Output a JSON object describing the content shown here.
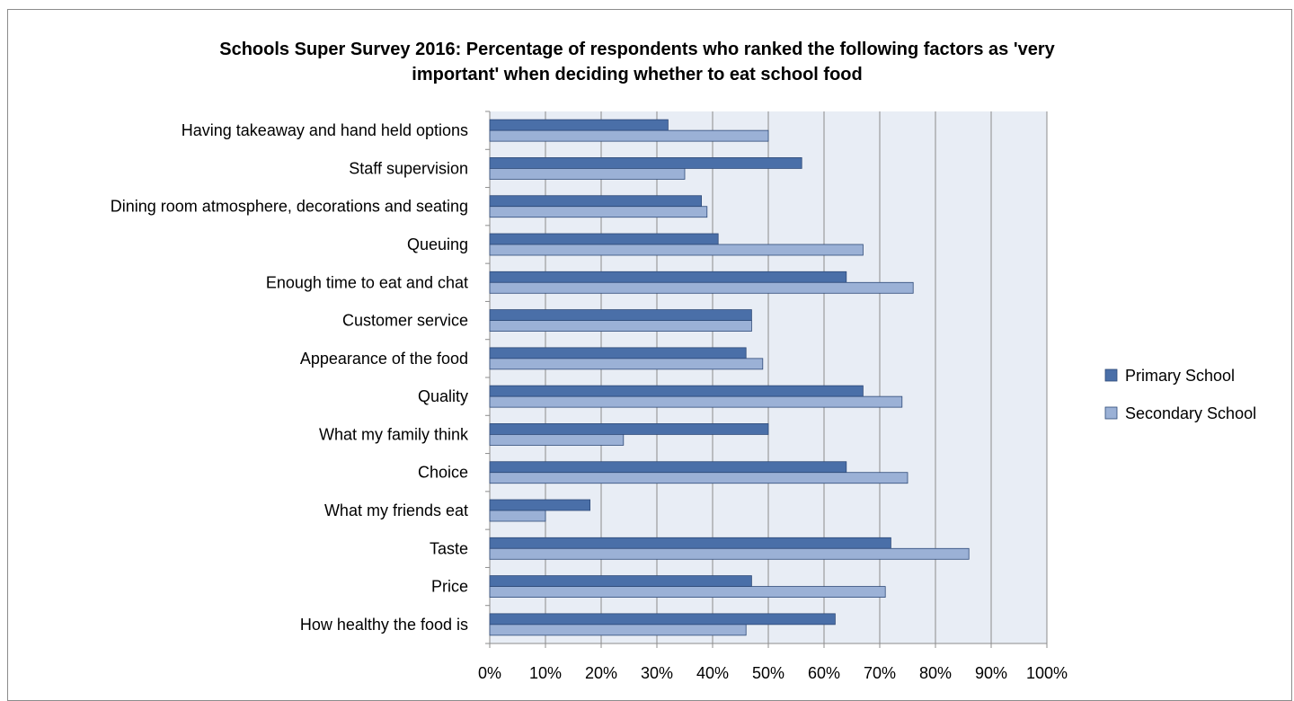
{
  "chart_data": {
    "type": "bar",
    "orientation": "horizontal",
    "title_lines": [
      "Schools Super Survey 2016:  Percentage of respondents who ranked the following factors as 'very",
      "important' when deciding whether to eat school food"
    ],
    "categories": [
      "Having takeaway and hand held options",
      "Staff supervision",
      "Dining room atmosphere, decorations and seating",
      "Queuing",
      "Enough time to eat and chat",
      "Customer service",
      "Appearance of the food",
      "Quality",
      "What my family think",
      "Choice",
      "What my friends eat",
      "Taste",
      "Price",
      "How healthy the food is"
    ],
    "series": [
      {
        "name": "Primary School",
        "color": "#4a6fa8",
        "values": [
          32,
          56,
          38,
          41,
          64,
          47,
          46,
          67,
          50,
          64,
          18,
          72,
          47,
          62
        ]
      },
      {
        "name": "Secondary School",
        "color": "#9bb1d6",
        "values": [
          50,
          35,
          39,
          67,
          76,
          47,
          49,
          74,
          24,
          75,
          10,
          86,
          71,
          46
        ]
      }
    ],
    "xlim": [
      0,
      100
    ],
    "x_ticks": [
      "0%",
      "10%",
      "20%",
      "30%",
      "40%",
      "50%",
      "60%",
      "70%",
      "80%",
      "90%",
      "100%"
    ],
    "plot_background": "#e8edf5",
    "grid": true,
    "legend_position": "right"
  }
}
